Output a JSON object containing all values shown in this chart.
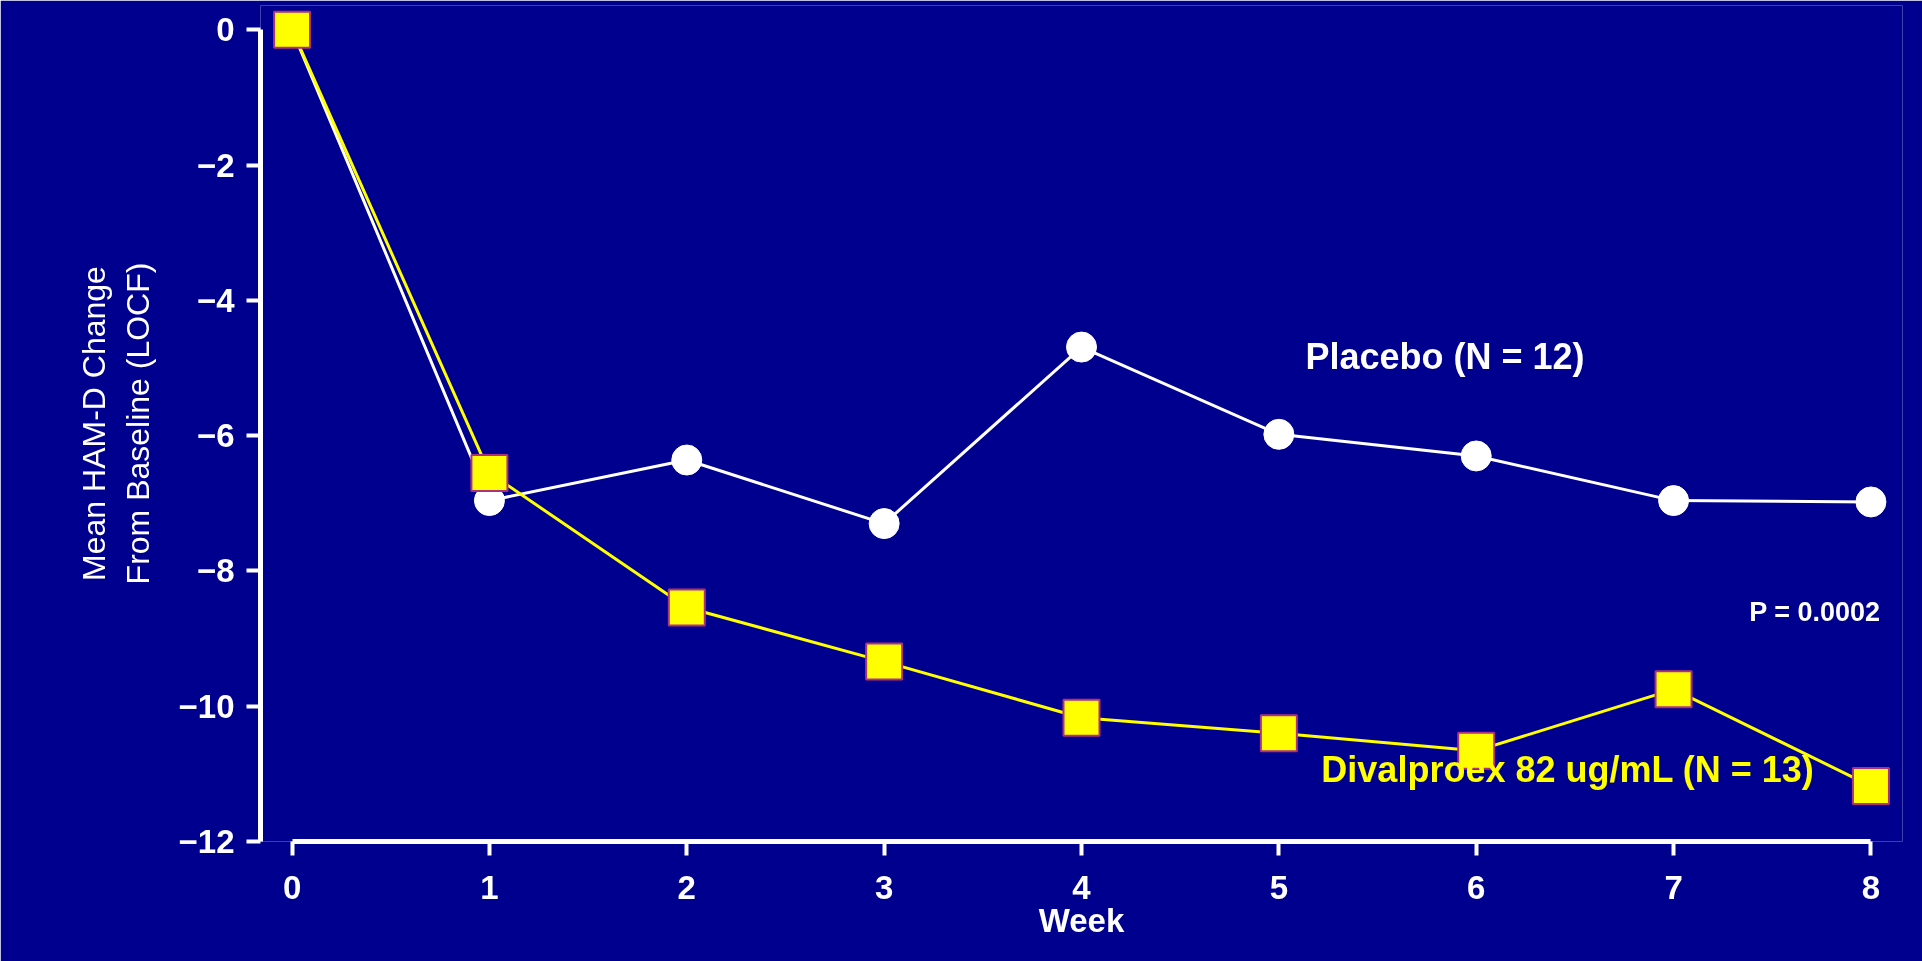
{
  "chart_data": {
    "type": "line",
    "xlabel": "Week",
    "ylabel": "Mean HAM-D Change\nFrom Baseline (LOCF)",
    "x": [
      0,
      1,
      2,
      3,
      4,
      5,
      6,
      7,
      8
    ],
    "series": [
      {
        "name": "Placebo (N = 12)",
        "color": "#ffffff",
        "marker": "circle",
        "values": [
          0,
          -6.96,
          -6.36,
          -7.3,
          -4.69,
          -5.98,
          -6.3,
          -6.96,
          -6.98
        ]
      },
      {
        "name": "Divalproex 82 ug/mL (N = 13)",
        "color": "#ffff00",
        "marker": "square",
        "values": [
          0,
          -6.55,
          -8.54,
          -9.34,
          -10.17,
          -10.4,
          -10.66,
          -9.75,
          -11.18
        ]
      }
    ],
    "annotations": [
      "P = 0.0002"
    ],
    "xlim": [
      0,
      8
    ],
    "ylim": [
      -12,
      0
    ],
    "xticks": [
      0,
      1,
      2,
      3,
      4,
      5,
      6,
      7,
      8
    ],
    "yticks": [
      0,
      -2,
      -4,
      -6,
      -8,
      -10,
      -12
    ],
    "grid": false,
    "line_style": "solid"
  }
}
